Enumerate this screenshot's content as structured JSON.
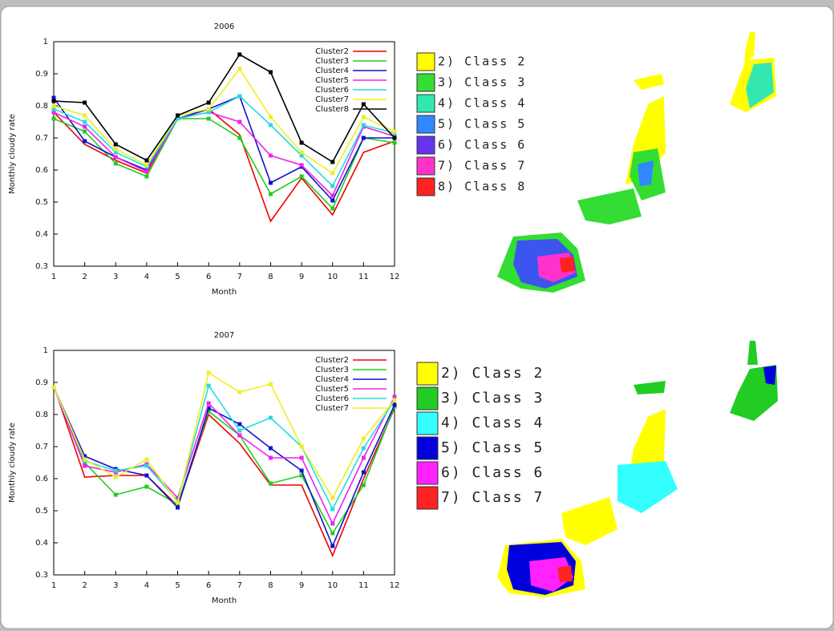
{
  "chart_data": [
    {
      "type": "line",
      "title": "2006",
      "x_label": "Month",
      "y_label": "Monthly cloudy rate",
      "x": [
        1,
        2,
        3,
        4,
        5,
        6,
        7,
        8,
        9,
        10,
        11,
        12
      ],
      "xlim": [
        1,
        12
      ],
      "xticks": [
        1,
        2,
        3,
        4,
        5,
        6,
        7,
        8,
        9,
        10,
        11,
        12
      ],
      "ylim": [
        0.3,
        1
      ],
      "yticks": [
        0.3,
        0.4,
        0.5,
        0.6,
        0.7,
        0.8,
        0.9,
        1
      ],
      "legend": "upper right",
      "series": [
        {
          "name": "Cluster2",
          "color": "#ee0000",
          "values": [
            0.78,
            0.68,
            0.63,
            0.59,
            0.76,
            0.79,
            0.71,
            0.44,
            0.575,
            0.46,
            0.655,
            0.69
          ]
        },
        {
          "name": "Cluster3",
          "color": "#22cc22",
          "values": [
            0.76,
            0.72,
            0.62,
            0.58,
            0.76,
            0.76,
            0.7,
            0.525,
            0.58,
            0.48,
            0.7,
            0.685
          ]
        },
        {
          "name": "Cluster4",
          "color": "#1111cc",
          "values": [
            0.825,
            0.69,
            0.64,
            0.6,
            0.76,
            0.79,
            0.83,
            0.56,
            0.61,
            0.505,
            0.7,
            0.7
          ]
        },
        {
          "name": "Cluster5",
          "color": "#ee22ee",
          "values": [
            0.78,
            0.735,
            0.64,
            0.595,
            0.76,
            0.78,
            0.75,
            0.645,
            0.615,
            0.52,
            0.735,
            0.705
          ]
        },
        {
          "name": "Cluster6",
          "color": "#22dddd",
          "values": [
            0.79,
            0.75,
            0.655,
            0.61,
            0.76,
            0.78,
            0.83,
            0.74,
            0.645,
            0.55,
            0.74,
            0.715
          ]
        },
        {
          "name": "Cluster7",
          "color": "#eeee22",
          "values": [
            0.8,
            0.77,
            0.665,
            0.615,
            0.77,
            0.79,
            0.915,
            0.765,
            0.655,
            0.59,
            0.765,
            0.72
          ]
        },
        {
          "name": "Cluster8",
          "color": "#000000",
          "values": [
            0.815,
            0.81,
            0.68,
            0.63,
            0.77,
            0.81,
            0.96,
            0.905,
            0.685,
            0.625,
            0.805,
            0.7
          ]
        }
      ]
    },
    {
      "type": "line",
      "title": "2007",
      "x_label": "Month",
      "y_label": "Monthly cloudy rate",
      "x": [
        1,
        2,
        3,
        4,
        5,
        6,
        7,
        8,
        9,
        10,
        11,
        12
      ],
      "xlim": [
        1,
        12
      ],
      "xticks": [
        1,
        2,
        3,
        4,
        5,
        6,
        7,
        8,
        9,
        10,
        11,
        12
      ],
      "ylim": [
        0.3,
        1
      ],
      "yticks": [
        0.3,
        0.4,
        0.5,
        0.6,
        0.7,
        0.8,
        0.9,
        1
      ],
      "legend": "upper right",
      "series": [
        {
          "name": "Cluster2",
          "color": "#ee0000",
          "values": [
            0.89,
            0.605,
            0.61,
            0.61,
            0.515,
            0.8,
            0.71,
            0.58,
            0.58,
            0.36,
            0.6,
            0.82
          ]
        },
        {
          "name": "Cluster3",
          "color": "#22cc22",
          "values": [
            0.885,
            0.65,
            0.55,
            0.575,
            0.52,
            0.81,
            0.735,
            0.585,
            0.61,
            0.43,
            0.58,
            0.825
          ]
        },
        {
          "name": "Cluster4",
          "color": "#1111cc",
          "values": [
            0.885,
            0.67,
            0.63,
            0.61,
            0.51,
            0.82,
            0.77,
            0.695,
            0.625,
            0.39,
            0.62,
            0.83
          ]
        },
        {
          "name": "Cluster5",
          "color": "#ee22ee",
          "values": [
            0.885,
            0.64,
            0.62,
            0.645,
            0.54,
            0.835,
            0.735,
            0.665,
            0.665,
            0.46,
            0.665,
            0.855
          ]
        },
        {
          "name": "Cluster6",
          "color": "#22dddd",
          "values": [
            0.885,
            0.655,
            0.625,
            0.64,
            0.53,
            0.89,
            0.75,
            0.79,
            0.7,
            0.505,
            0.695,
            0.845
          ]
        },
        {
          "name": "Cluster7",
          "color": "#eeee22",
          "values": [
            0.885,
            0.66,
            0.605,
            0.66,
            0.525,
            0.93,
            0.87,
            0.895,
            0.7,
            0.54,
            0.725,
            0.845
          ]
        }
      ]
    }
  ],
  "class_legends": [
    {
      "items": [
        {
          "label": "2) Class 2",
          "color": "#ffff00"
        },
        {
          "label": "3) Class 3",
          "color": "#33dd33"
        },
        {
          "label": "4) Class 4",
          "color": "#33e8b0"
        },
        {
          "label": "5) Class 5",
          "color": "#2f88ff"
        },
        {
          "label": "6) Class 6",
          "color": "#6633ee"
        },
        {
          "label": "7) Class 7",
          "color": "#ff33cc"
        },
        {
          "label": "8) Class 8",
          "color": "#ff2222"
        }
      ]
    },
    {
      "items": [
        {
          "label": "2) Class 2",
          "color": "#ffff00"
        },
        {
          "label": "3) Class 3",
          "color": "#22cc22"
        },
        {
          "label": "4) Class 4",
          "color": "#33ffff"
        },
        {
          "label": "5) Class 5",
          "color": "#0000dd"
        },
        {
          "label": "6) Class 6",
          "color": "#ff22ff"
        },
        {
          "label": "7) Class 7",
          "color": "#ff2222"
        }
      ]
    }
  ]
}
